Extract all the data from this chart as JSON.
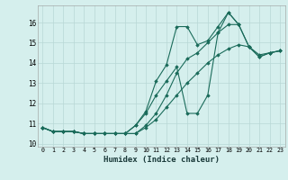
{
  "xlabel": "Humidex (Indice chaleur)",
  "bg_color": "#d5efed",
  "grid_color": "#b8d8d5",
  "line_color": "#1a6b5a",
  "xlim": [
    -0.5,
    23.5
  ],
  "ylim": [
    9.85,
    16.85
  ],
  "yticks": [
    10,
    11,
    12,
    13,
    14,
    15,
    16
  ],
  "xticks": [
    0,
    1,
    2,
    3,
    4,
    5,
    6,
    7,
    8,
    9,
    10,
    11,
    12,
    13,
    14,
    15,
    16,
    17,
    18,
    19,
    20,
    21,
    22,
    23
  ],
  "series": [
    [
      10.8,
      10.6,
      10.6,
      10.6,
      10.5,
      10.5,
      10.5,
      10.5,
      10.5,
      10.9,
      11.6,
      13.1,
      13.9,
      15.8,
      15.8,
      14.9,
      15.1,
      15.8,
      16.5,
      15.9,
      null,
      null,
      null,
      null
    ],
    [
      10.8,
      10.6,
      10.6,
      10.6,
      10.5,
      10.5,
      10.5,
      10.5,
      10.5,
      10.9,
      11.5,
      12.4,
      13.1,
      13.8,
      11.5,
      11.5,
      12.4,
      15.5,
      16.5,
      15.9,
      14.8,
      14.4,
      14.5,
      14.6
    ],
    [
      10.8,
      10.6,
      10.6,
      10.6,
      10.5,
      10.5,
      10.5,
      10.5,
      10.5,
      10.5,
      10.9,
      11.5,
      12.4,
      13.5,
      14.2,
      14.5,
      15.0,
      15.5,
      15.9,
      15.9,
      14.8,
      14.3,
      14.5,
      14.6
    ],
    [
      10.8,
      10.6,
      10.6,
      10.6,
      10.5,
      10.5,
      10.5,
      10.5,
      10.5,
      10.5,
      10.8,
      11.2,
      11.8,
      12.4,
      13.0,
      13.5,
      14.0,
      14.4,
      14.7,
      14.9,
      14.8,
      14.3,
      14.5,
      14.6
    ]
  ]
}
